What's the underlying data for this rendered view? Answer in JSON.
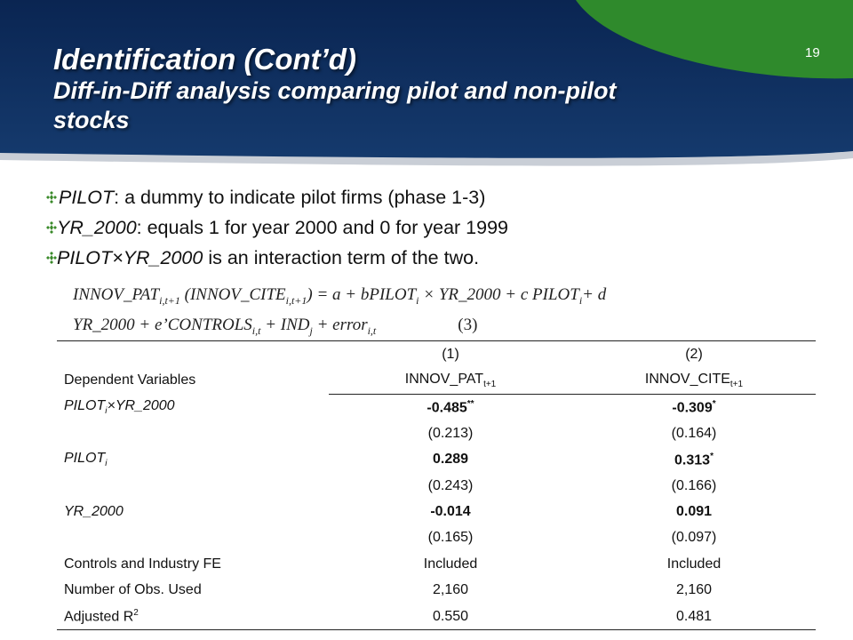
{
  "colors": {
    "navy": "#0f2e5c",
    "green": "#2f8a2c",
    "bullet_green": "#3a8a2a"
  },
  "slide": {
    "title": "Identification (Cont’d)",
    "subtitle_line1": "Diff-in-Diff analysis comparing pilot and non-pilot",
    "subtitle_line2": "stocks",
    "number": "19"
  },
  "bullets": [
    {
      "term": "PILOT",
      "text": ": a dummy to indicate pilot firms (phase 1-3)"
    },
    {
      "term": "YR_2000",
      "text": ": equals 1 for year 2000 and 0 for year 1999"
    },
    {
      "term": "PILOT×YR_2000",
      "text": " is an interaction term of the two."
    }
  ],
  "formula": {
    "p1": "INNOV_PAT",
    "s1": "i,t+1",
    "p2": " (INNOV_CITE",
    "s2": "i,t+1",
    "p3": ") = a + bPILOT",
    "s3": "i",
    "p4": " × YR_2000 + c PILOT",
    "s4": "i",
    "p5": "+ d",
    "p6": "YR_2000 + e’CONTROLS",
    "s6": "i,t",
    "p7": " + IND",
    "s7": "j",
    "p8": " + error",
    "s8": "i,t",
    "eq_num": "(3)"
  },
  "table": {
    "col_num1": "(1)",
    "col_num2": "(2)",
    "dep_label": "Dependent Variables",
    "dep1": "INNOV_PAT",
    "dep1_sub": "t+1",
    "dep2": "INNOV_CITE",
    "dep2_sub": "t+1",
    "r1_label": "PILOT",
    "r1_sub": "i",
    "r1_tail": "×YR_2000",
    "r1_c1": "-0.485",
    "r1_c1_sup": "**",
    "r1_c2": "-0.309",
    "r1_c2_sup": "*",
    "r1_se1": "(0.213)",
    "r1_se2": "(0.164)",
    "r2_label": "PILOT",
    "r2_sub": "i",
    "r2_c1": "0.289",
    "r2_c2": "0.313",
    "r2_c2_sup": "*",
    "r2_se1": "(0.243)",
    "r2_se2": "(0.166)",
    "r3_label": "YR_2000",
    "r3_c1": "-0.014",
    "r3_c2": "0.091",
    "r3_se1": "(0.165)",
    "r3_se2": "(0.097)",
    "r4_label": "Controls and Industry FE",
    "r4_c1": "Included",
    "r4_c2": "Included",
    "r5_label": "Number of Obs. Used",
    "r5_c1": "2,160",
    "r5_c2": "2,160",
    "r6_label": "Adjusted R",
    "r6_sup": "2",
    "r6_c1": "0.550",
    "r6_c2": "0.481"
  }
}
